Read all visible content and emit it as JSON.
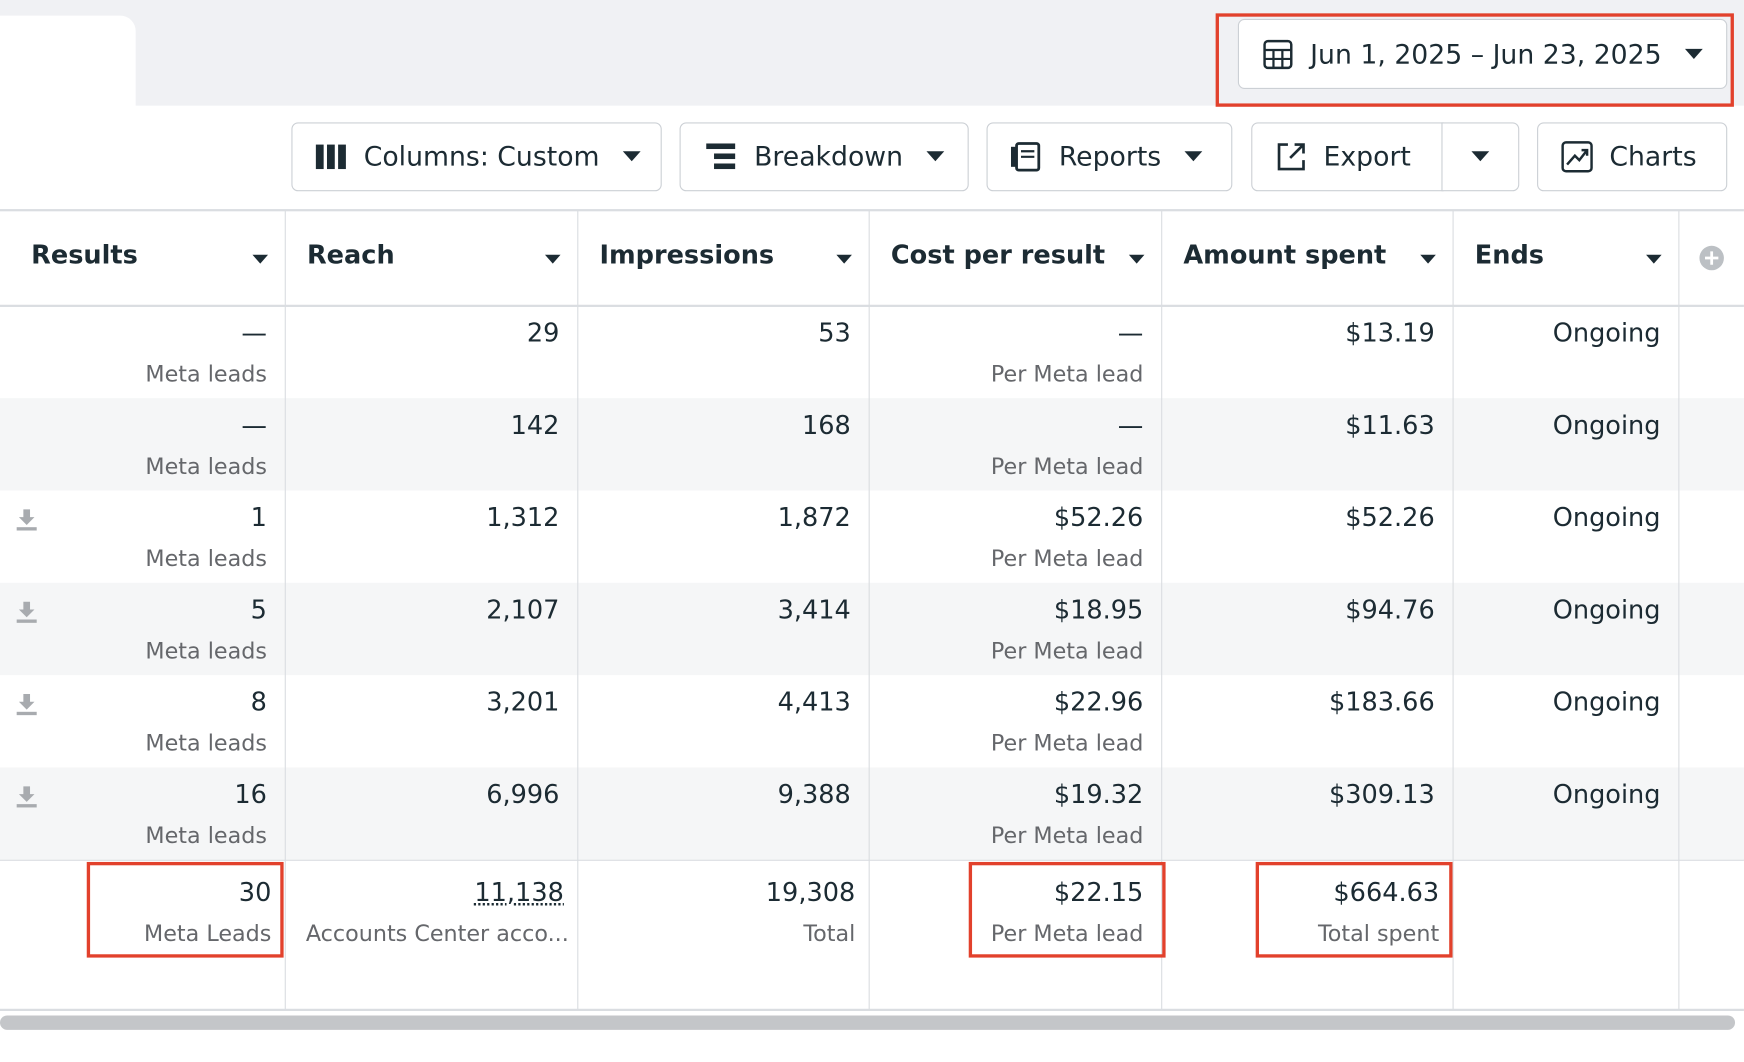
{
  "date_range": "Jun 1, 2025 – Jun 23, 2025",
  "toolbar": {
    "columns": "Columns: Custom",
    "breakdown": "Breakdown",
    "reports": "Reports",
    "export": "Export",
    "charts": "Charts"
  },
  "table": {
    "headers": [
      "Results",
      "Reach",
      "Impressions",
      "Cost per result",
      "Amount spent",
      "Ends"
    ],
    "rows": [
      {
        "results": "—",
        "results_label": "Meta leads",
        "reach": "29",
        "impressions": "53",
        "cost": "—",
        "cost_label": "Per Meta lead",
        "spent": "$13.19",
        "ends": "Ongoing"
      },
      {
        "results": "—",
        "results_label": "Meta leads",
        "reach": "142",
        "impressions": "168",
        "cost": "—",
        "cost_label": "Per Meta lead",
        "spent": "$11.63",
        "ends": "Ongoing"
      },
      {
        "results": "1",
        "results_label": "Meta leads",
        "reach": "1,312",
        "impressions": "1,872",
        "cost": "$52.26",
        "cost_label": "Per Meta lead",
        "spent": "$52.26",
        "ends": "Ongoing"
      },
      {
        "results": "5",
        "results_label": "Meta leads",
        "reach": "2,107",
        "impressions": "3,414",
        "cost": "$18.95",
        "cost_label": "Per Meta lead",
        "spent": "$94.76",
        "ends": "Ongoing"
      },
      {
        "results": "8",
        "results_label": "Meta leads",
        "reach": "3,201",
        "impressions": "4,413",
        "cost": "$22.96",
        "cost_label": "Per Meta lead",
        "spent": "$183.66",
        "ends": "Ongoing"
      },
      {
        "results": "16",
        "results_label": "Meta leads",
        "reach": "6,996",
        "impressions": "9,388",
        "cost": "$19.32",
        "cost_label": "Per Meta lead",
        "spent": "$309.13",
        "ends": "Ongoing"
      }
    ],
    "totals": {
      "results": "30",
      "results_label": "Meta Leads",
      "reach": "11,138",
      "reach_label": "Accounts Center acco...",
      "impressions": "19,308",
      "impressions_label": "Total",
      "cost": "$22.15",
      "cost_label": "Per Meta lead",
      "spent": "$664.63",
      "spent_label": "Total spent"
    }
  }
}
